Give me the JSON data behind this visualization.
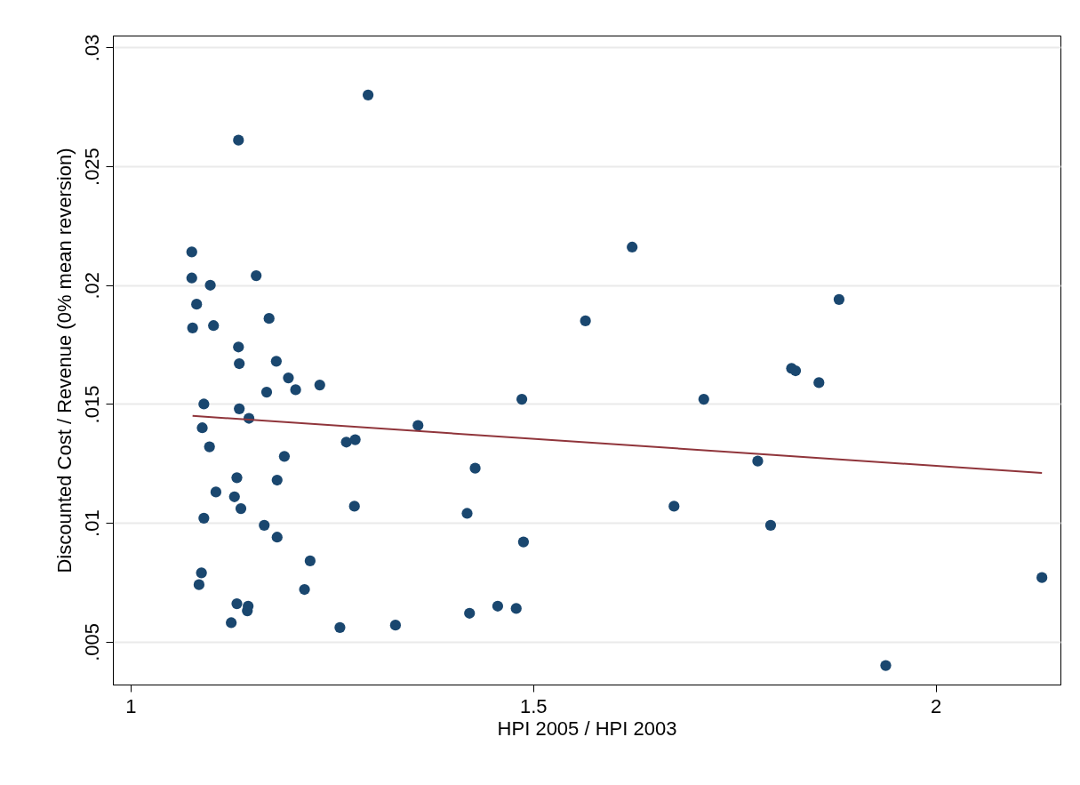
{
  "chart_data": {
    "type": "scatter",
    "xlabel": "HPI 2005 / HPI 2003",
    "ylabel": "Discounted Cost / Revenue (0% mean reversion)",
    "xlim": [
      0.978,
      2.155
    ],
    "xticks": [
      1,
      1.5,
      2
    ],
    "ylim": [
      0.0032,
      0.0305
    ],
    "yticks": [
      {
        "value": 0.005,
        "label": ".005"
      },
      {
        "value": 0.01,
        "label": ".01"
      },
      {
        "value": 0.015,
        "label": ".015"
      },
      {
        "value": 0.02,
        "label": ".02"
      },
      {
        "value": 0.025,
        "label": ".025"
      },
      {
        "value": 0.03,
        "label": ".03"
      }
    ],
    "grid": "y",
    "series": [
      {
        "marker": "circle",
        "color": "#1a476f",
        "x": [
          1.076,
          1.076,
          1.082,
          1.077,
          1.099,
          1.103,
          1.134,
          1.295,
          1.156,
          1.134,
          1.135,
          1.172,
          1.181,
          1.196,
          1.169,
          1.205,
          1.235,
          1.091,
          1.135,
          1.147,
          1.089,
          1.098,
          1.357,
          1.268,
          1.279,
          1.191,
          1.428,
          1.132,
          1.182,
          1.106,
          1.129,
          1.137,
          1.278,
          1.091,
          1.166,
          1.182,
          1.223,
          1.088,
          1.085,
          1.216,
          1.132,
          1.146,
          1.145,
          1.125,
          1.26,
          1.329,
          1.421,
          1.456,
          1.479,
          1.418,
          1.488,
          1.486,
          1.565,
          1.623,
          1.675,
          1.712,
          1.779,
          1.795,
          1.821,
          1.826,
          1.855,
          1.88,
          1.938,
          2.132
        ],
        "values": [
          0.0214,
          0.0203,
          0.0192,
          0.0182,
          0.02,
          0.0183,
          0.0261,
          0.028,
          0.0204,
          0.0174,
          0.0167,
          0.0186,
          0.0168,
          0.0161,
          0.0155,
          0.0156,
          0.0158,
          0.015,
          0.0148,
          0.0144,
          0.014,
          0.0132,
          0.0141,
          0.0134,
          0.0135,
          0.0128,
          0.0123,
          0.0119,
          0.0118,
          0.0113,
          0.0111,
          0.0106,
          0.0107,
          0.0102,
          0.0099,
          0.0094,
          0.0084,
          0.0079,
          0.0074,
          0.0072,
          0.0066,
          0.0065,
          0.0063,
          0.0058,
          0.0056,
          0.0057,
          0.0062,
          0.0065,
          0.0064,
          0.0104,
          0.0092,
          0.0152,
          0.0185,
          0.0216,
          0.0107,
          0.0152,
          0.0126,
          0.0099,
          0.0165,
          0.0164,
          0.0159,
          0.0194,
          0.004,
          0.0077
        ]
      },
      {
        "type": "line",
        "color": "#90353b",
        "x": [
          1.077,
          2.132
        ],
        "values": [
          0.0145,
          0.0121
        ]
      }
    ]
  }
}
